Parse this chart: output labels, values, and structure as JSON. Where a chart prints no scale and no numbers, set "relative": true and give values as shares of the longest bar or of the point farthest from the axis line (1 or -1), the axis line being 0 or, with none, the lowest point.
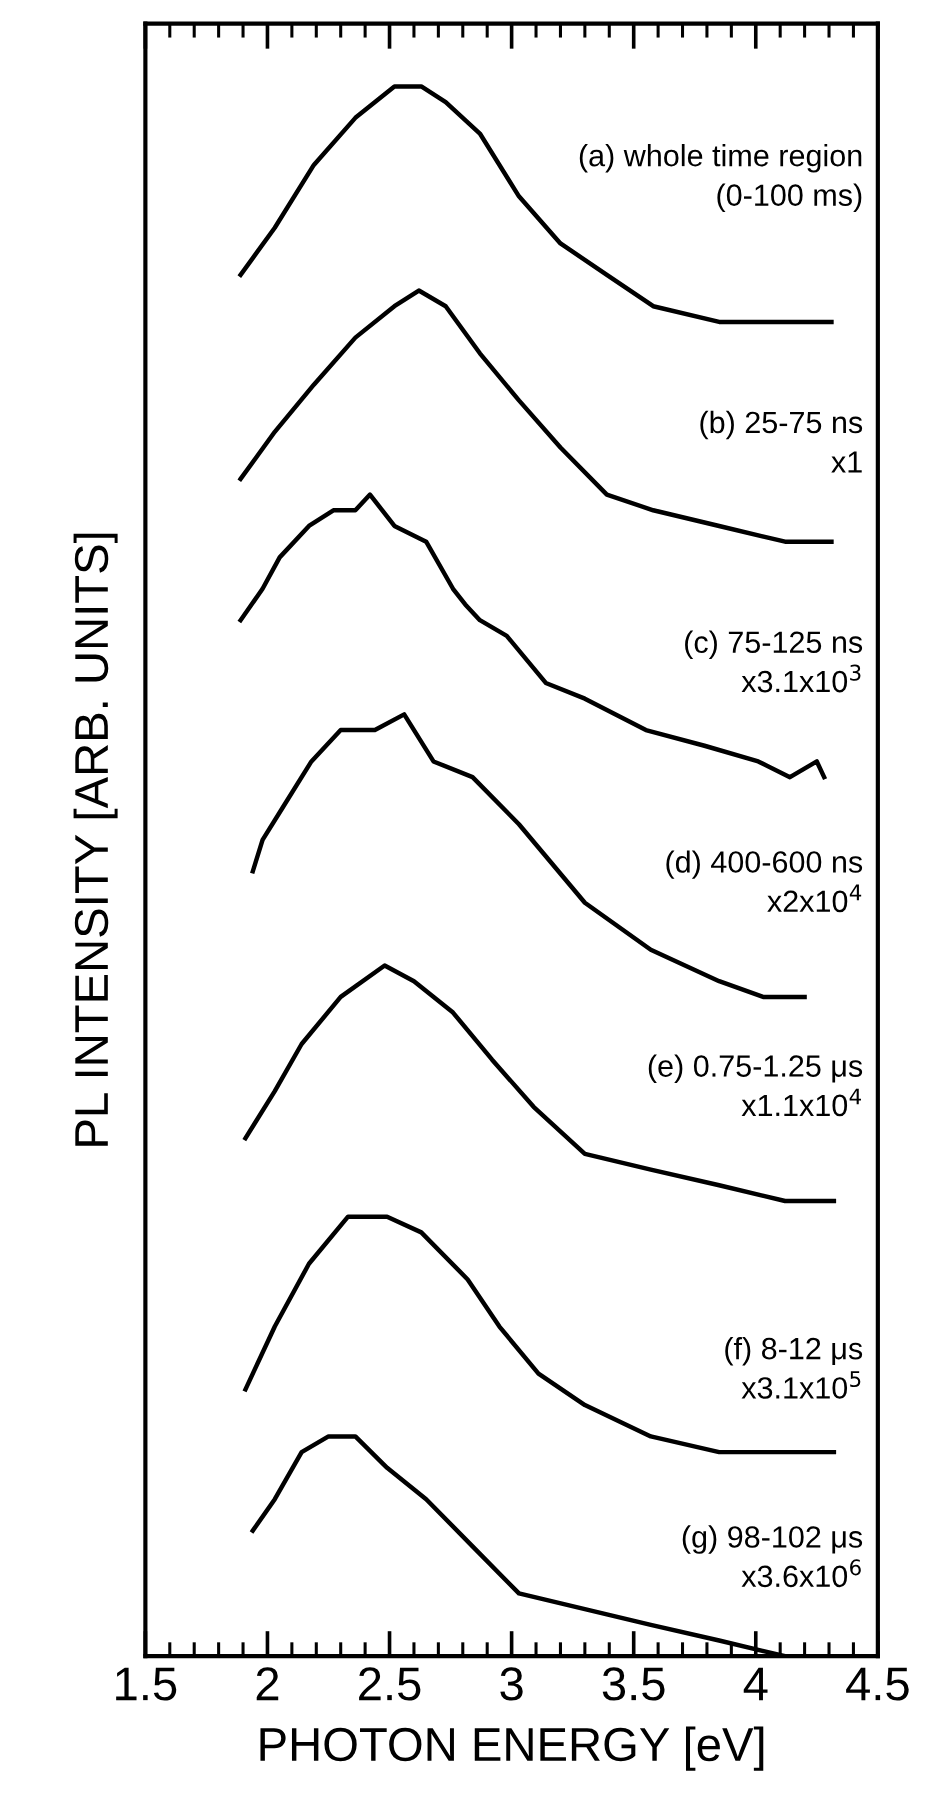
{
  "chart_data": {
    "type": "line",
    "relative": true,
    "xlabel": "PHOTON ENERGY [eV]",
    "ylabel": "PL INTENSITY [ARB. UNITS]",
    "xlim": [
      1.5,
      4.5
    ],
    "xticks": [
      1.5,
      2,
      2.5,
      3,
      3.5,
      4,
      4.5
    ],
    "grid": false,
    "legend": false,
    "marker": "none",
    "line_style": "solid",
    "series": [
      {
        "name": "(a) whole time region\n  (0-100 ms)",
        "color": "#000000",
        "x": [
          1.89,
          2.03,
          2.19,
          2.36,
          2.52,
          2.63,
          2.73,
          2.87,
          3.03,
          3.2,
          3.39,
          3.58,
          3.85,
          4.12,
          4.31
        ],
        "values": [
          0.88,
          0.91,
          0.95,
          0.98,
          1.0,
          1.0,
          0.99,
          0.97,
          0.93,
          0.9,
          0.88,
          0.86,
          0.85,
          0.85,
          0.85
        ]
      },
      {
        "name": "(b) 25-75 ns\n     x1",
        "color": "#000000",
        "x": [
          1.89,
          2.03,
          2.19,
          2.36,
          2.52,
          2.62,
          2.73,
          2.87,
          3.03,
          3.2,
          3.39,
          3.58,
          3.85,
          4.12,
          4.31
        ],
        "values": [
          0.75,
          0.78,
          0.81,
          0.84,
          0.86,
          0.87,
          0.86,
          0.83,
          0.8,
          0.77,
          0.74,
          0.73,
          0.72,
          0.71,
          0.71
        ]
      },
      {
        "name": "(c) 75-125 ns\n     x3.1x10$^{3}$",
        "color": "#000000",
        "x": [
          1.89,
          1.98,
          2.05,
          2.17,
          2.27,
          2.36,
          2.42,
          2.52,
          2.65,
          2.76,
          2.81,
          2.87,
          2.98,
          3.14,
          3.3,
          3.55,
          3.79,
          4.01,
          4.14,
          4.25,
          4.28
        ],
        "values": [
          0.66,
          0.68,
          0.7,
          0.72,
          0.73,
          0.73,
          0.74,
          0.72,
          0.71,
          0.68,
          0.67,
          0.66,
          0.65,
          0.62,
          0.61,
          0.59,
          0.58,
          0.57,
          0.56,
          0.57,
          0.56
        ]
      },
      {
        "name": "(d) 400-600 ns\n     x2x10$^{4}$",
        "color": "#000000",
        "x": [
          1.94,
          1.98,
          2.06,
          2.18,
          2.3,
          2.44,
          2.56,
          2.68,
          2.84,
          3.03,
          3.3,
          3.57,
          3.85,
          4.03,
          4.2
        ],
        "values": [
          0.5,
          0.52,
          0.54,
          0.57,
          0.59,
          0.59,
          0.6,
          0.57,
          0.56,
          0.53,
          0.48,
          0.45,
          0.43,
          0.42,
          0.42
        ]
      },
      {
        "name": "(e) 0.75-1.25 μs\n     x1.1x10$^{4}$",
        "color": "#000000",
        "x": [
          1.91,
          2.03,
          2.14,
          2.3,
          2.48,
          2.6,
          2.76,
          2.92,
          3.09,
          3.3,
          3.57,
          3.85,
          4.12,
          4.32
        ],
        "values": [
          0.33,
          0.36,
          0.39,
          0.42,
          0.44,
          0.43,
          0.41,
          0.38,
          0.35,
          0.32,
          0.31,
          0.3,
          0.29,
          0.29
        ]
      },
      {
        "name": "(f) 8-12 μs\n     x3.1x10$^{5}$",
        "color": "#000000",
        "x": [
          1.91,
          2.03,
          2.17,
          2.33,
          2.49,
          2.63,
          2.82,
          2.95,
          3.11,
          3.3,
          3.57,
          3.85,
          4.12,
          4.32
        ],
        "values": [
          0.17,
          0.21,
          0.25,
          0.28,
          0.28,
          0.27,
          0.24,
          0.21,
          0.18,
          0.16,
          0.14,
          0.13,
          0.13,
          0.13
        ]
      },
      {
        "name": "(g) 98-102 μs\n     x3.6x10$^{6}$",
        "color": "#000000",
        "x": [
          1.94,
          2.03,
          2.14,
          2.25,
          2.36,
          2.49,
          2.65,
          2.84,
          3.03,
          3.3,
          3.57,
          3.85,
          4.12
        ],
        "values": [
          0.08,
          0.1,
          0.13,
          0.14,
          0.14,
          0.12,
          0.1,
          0.07,
          0.04,
          0.03,
          0.02,
          0.01,
          0.0
        ]
      }
    ]
  }
}
